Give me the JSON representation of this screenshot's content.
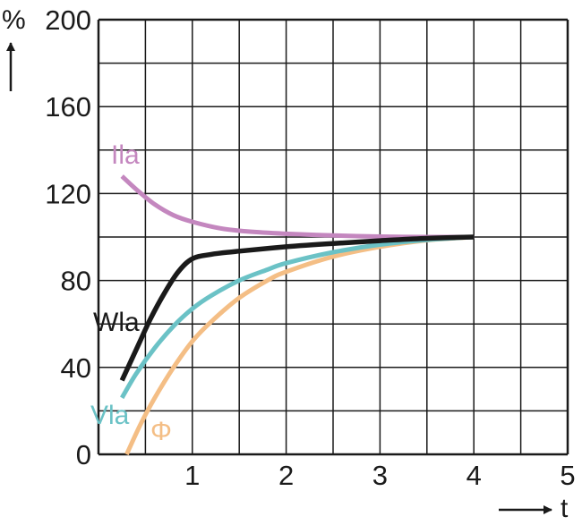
{
  "chart_data": {
    "type": "line",
    "ylabel": "%",
    "xlabel": "t",
    "xlim": [
      0,
      5
    ],
    "ylim": [
      0,
      200
    ],
    "x_ticks": [
      "1",
      "2",
      "3",
      "4",
      "5"
    ],
    "y_ticks": [
      "0",
      "40",
      "80",
      "120",
      "160",
      "200"
    ],
    "grid": true,
    "series": [
      {
        "name": "Ila",
        "color": "#c487bf",
        "points": [
          [
            0.25,
            128
          ],
          [
            0.4,
            122
          ],
          [
            0.6,
            115
          ],
          [
            0.8,
            110
          ],
          [
            1.0,
            107
          ],
          [
            1.3,
            104
          ],
          [
            1.6,
            102.5
          ],
          [
            2.0,
            101.5
          ],
          [
            2.5,
            100.7
          ],
          [
            3.0,
            100.2
          ],
          [
            3.5,
            100
          ],
          [
            4.0,
            100
          ]
        ]
      },
      {
        "name": "Wla",
        "color": "#1a1a1a",
        "points": [
          [
            0.25,
            34
          ],
          [
            0.4,
            48
          ],
          [
            0.55,
            62
          ],
          [
            0.7,
            74
          ],
          [
            0.85,
            84
          ],
          [
            1.0,
            90
          ],
          [
            1.2,
            92
          ],
          [
            1.5,
            93.5
          ],
          [
            2.0,
            95.5
          ],
          [
            2.5,
            97
          ],
          [
            3.0,
            98.3
          ],
          [
            3.5,
            99.4
          ],
          [
            4.0,
            100
          ]
        ]
      },
      {
        "name": "Vla",
        "color": "#6bc2c6",
        "points": [
          [
            0.25,
            26
          ],
          [
            0.4,
            37
          ],
          [
            0.6,
            49
          ],
          [
            0.8,
            59
          ],
          [
            1.0,
            67
          ],
          [
            1.2,
            73
          ],
          [
            1.5,
            80
          ],
          [
            1.8,
            85
          ],
          [
            2.0,
            88
          ],
          [
            2.5,
            93
          ],
          [
            3.0,
            96.5
          ],
          [
            3.5,
            98.7
          ],
          [
            4.0,
            100
          ]
        ]
      },
      {
        "name": "Φ",
        "color": "#f4be85",
        "points": [
          [
            0.3,
            0
          ],
          [
            0.45,
            14
          ],
          [
            0.6,
            26
          ],
          [
            0.8,
            40
          ],
          [
            1.0,
            52
          ],
          [
            1.2,
            61
          ],
          [
            1.5,
            72
          ],
          [
            1.8,
            80
          ],
          [
            2.0,
            84
          ],
          [
            2.5,
            91
          ],
          [
            3.0,
            95.5
          ],
          [
            3.5,
            98.5
          ],
          [
            4.0,
            100
          ]
        ]
      }
    ]
  }
}
